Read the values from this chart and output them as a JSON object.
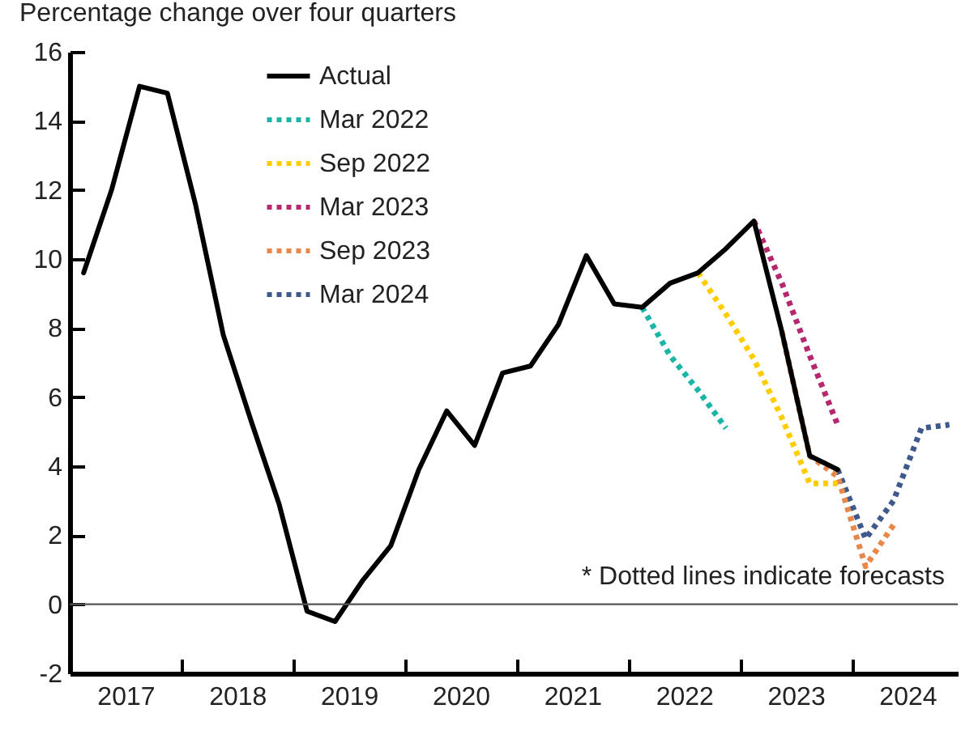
{
  "chart_data": {
    "type": "line",
    "title": "Percentage change over four quarters",
    "annotations": [
      "* Dotted lines indicate forecasts"
    ],
    "xlim": [
      2017,
      2024.95
    ],
    "xticks": [
      {
        "value": 2017.5,
        "label": "2017"
      },
      {
        "value": 2018,
        "label": null
      },
      {
        "value": 2018.5,
        "label": "2018"
      },
      {
        "value": 2019,
        "label": null
      },
      {
        "value": 2019.5,
        "label": "2019"
      },
      {
        "value": 2020,
        "label": null
      },
      {
        "value": 2020.5,
        "label": "2020"
      },
      {
        "value": 2021,
        "label": null
      },
      {
        "value": 2021.5,
        "label": "2021"
      },
      {
        "value": 2022,
        "label": null
      },
      {
        "value": 2022.5,
        "label": "2022"
      },
      {
        "value": 2023,
        "label": null
      },
      {
        "value": 2023.5,
        "label": "2023"
      },
      {
        "value": 2024,
        "label": null
      },
      {
        "value": 2024.5,
        "label": "2024"
      }
    ],
    "ylim": [
      -2,
      16
    ],
    "yticks": [
      -2,
      0,
      2,
      4,
      6,
      8,
      10,
      12,
      14,
      16
    ],
    "ref_lines": [
      {
        "axis": "y",
        "value": 0,
        "color": "#555555"
      }
    ],
    "legend": "top left",
    "grid": false,
    "marker": "none",
    "series": [
      {
        "name": "Actual",
        "color": "#000000",
        "line_style": "solid",
        "x": [
          2017.125,
          2017.375,
          2017.625,
          2017.875,
          2018.125,
          2018.375,
          2018.625,
          2018.875,
          2019.125,
          2019.375,
          2019.625,
          2019.875,
          2020.125,
          2020.375,
          2020.625,
          2020.875,
          2021.125,
          2021.375,
          2021.625,
          2021.875,
          2022.125,
          2022.375,
          2022.625,
          2022.875,
          2023.125,
          2023.375,
          2023.625,
          2023.875
        ],
        "values": [
          9.6,
          12.0,
          15.0,
          14.8,
          11.6,
          7.8,
          5.3,
          2.9,
          -0.2,
          -0.5,
          0.7,
          1.7,
          3.9,
          5.6,
          4.6,
          6.7,
          6.9,
          8.1,
          10.1,
          8.7,
          8.6,
          9.3,
          9.6,
          10.3,
          11.1,
          7.9,
          4.3,
          3.9
        ]
      },
      {
        "name": "Mar 2022",
        "color": "#1bb5a8",
        "line_style": "dotted",
        "x": [
          2022.125,
          2022.375,
          2022.625,
          2022.875
        ],
        "values": [
          8.6,
          7.2,
          6.2,
          5.1
        ]
      },
      {
        "name": "Sep 2022",
        "color": "#ffcc00",
        "line_style": "dotted",
        "x": [
          2022.625,
          2022.875,
          2023.125,
          2023.375,
          2023.625,
          2023.875
        ],
        "values": [
          9.6,
          8.4,
          7.1,
          5.4,
          3.5,
          3.5
        ]
      },
      {
        "name": "Mar 2023",
        "color": "#b5286e",
        "line_style": "dotted",
        "x": [
          2023.125,
          2023.375,
          2023.625,
          2023.875
        ],
        "values": [
          11.1,
          9.3,
          7.2,
          5.2
        ]
      },
      {
        "name": "Sep 2023",
        "color": "#e8874a",
        "line_style": "dotted",
        "x": [
          2023.375,
          2023.625,
          2023.875,
          2024.125,
          2024.375
        ],
        "values": [
          7.9,
          4.3,
          3.7,
          1.1,
          2.3
        ]
      },
      {
        "name": "Mar 2024",
        "color": "#3f5a8a",
        "line_style": "dotted",
        "x": [
          2023.875,
          2024.125,
          2024.375,
          2024.625,
          2024.875
        ],
        "values": [
          3.9,
          1.9,
          3.0,
          5.1,
          5.2
        ]
      }
    ]
  }
}
